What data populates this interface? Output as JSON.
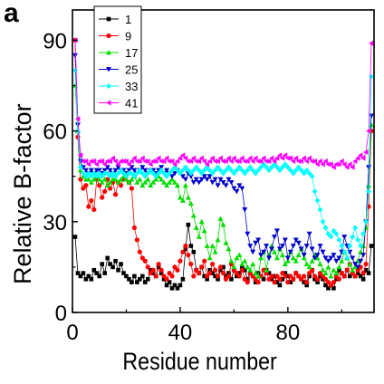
{
  "panel_label": "a",
  "chart_data": {
    "type": "line",
    "title": "",
    "xlabel": "Residue number",
    "ylabel": "Relative B-factor",
    "xlim": [
      0,
      112
    ],
    "ylim": [
      0,
      100
    ],
    "xticks": [
      0,
      40,
      80
    ],
    "yticks": [
      0,
      30,
      60,
      90
    ],
    "legend_position": "top-left",
    "grid": false,
    "series": [
      {
        "name": "1",
        "color": "#000000",
        "marker": "square",
        "x": [
          1,
          2,
          3,
          4,
          5,
          6,
          7,
          8,
          9,
          10,
          11,
          12,
          13,
          14,
          15,
          16,
          17,
          18,
          19,
          20,
          21,
          22,
          23,
          24,
          25,
          26,
          27,
          28,
          29,
          30,
          31,
          32,
          33,
          34,
          35,
          36,
          37,
          38,
          39,
          40,
          41,
          42,
          43,
          44,
          45,
          46,
          47,
          48,
          49,
          50,
          51,
          52,
          53,
          54,
          55,
          56,
          57,
          58,
          59,
          60,
          61,
          62,
          63,
          64,
          65,
          66,
          67,
          68,
          69,
          70,
          71,
          72,
          73,
          74,
          75,
          76,
          77,
          78,
          79,
          80,
          81,
          82,
          83,
          84,
          85,
          86,
          87,
          88,
          89,
          90,
          91,
          92,
          93,
          94,
          95,
          96,
          97,
          98,
          99,
          100,
          101,
          102,
          103,
          104,
          105,
          106,
          107,
          108,
          109,
          110,
          111
        ],
        "y": [
          25,
          13,
          12,
          13,
          11,
          12,
          11,
          14,
          13,
          12,
          16,
          13,
          18,
          16,
          15,
          17,
          14,
          16,
          13,
          12,
          11,
          10,
          12,
          10,
          11,
          12,
          10,
          11,
          14,
          13,
          12,
          15,
          13,
          11,
          9,
          10,
          8,
          9,
          8,
          9,
          11,
          21,
          29,
          22,
          20,
          14,
          13,
          15,
          12,
          11,
          14,
          13,
          12,
          11,
          14,
          15,
          12,
          13,
          11,
          14,
          12,
          13,
          15,
          14,
          11,
          13,
          12,
          10,
          13,
          12,
          11,
          14,
          13,
          11,
          12,
          10,
          9,
          11,
          13,
          12,
          10,
          11,
          13,
          12,
          11,
          10,
          9,
          12,
          14,
          11,
          10,
          12,
          11,
          9,
          8,
          9,
          8,
          11,
          14,
          13,
          12,
          14,
          12,
          13,
          12,
          13,
          12,
          11,
          14,
          13,
          22
        ]
      },
      {
        "name": "9",
        "color": "#ff0000",
        "marker": "circle",
        "x": [
          1,
          2,
          3,
          4,
          5,
          6,
          7,
          8,
          9,
          10,
          11,
          12,
          13,
          14,
          15,
          16,
          17,
          18,
          19,
          20,
          21,
          22,
          23,
          24,
          25,
          26,
          27,
          28,
          29,
          30,
          31,
          32,
          33,
          34,
          35,
          36,
          37,
          38,
          39,
          40,
          41,
          42,
          43,
          44,
          45,
          46,
          47,
          48,
          49,
          50,
          51,
          52,
          53,
          54,
          55,
          56,
          57,
          58,
          59,
          60,
          61,
          62,
          63,
          64,
          65,
          66,
          67,
          68,
          69,
          70,
          71,
          72,
          73,
          74,
          75,
          76,
          77,
          78,
          79,
          80,
          81,
          82,
          83,
          84,
          85,
          86,
          87,
          88,
          89,
          90,
          91,
          92,
          93,
          94,
          95,
          96,
          97,
          98,
          99,
          100,
          101,
          102,
          103,
          104,
          105,
          106,
          107,
          108,
          109,
          110,
          111
        ],
        "y": [
          90,
          58,
          44,
          41,
          42,
          35,
          37,
          34,
          44,
          42,
          38,
          40,
          44,
          41,
          43,
          39,
          43,
          42,
          44,
          45,
          43,
          41,
          28,
          24,
          20,
          18,
          17,
          15,
          13,
          14,
          12,
          16,
          14,
          12,
          11,
          13,
          12,
          15,
          14,
          17,
          20,
          22,
          19,
          16,
          12,
          14,
          13,
          15,
          17,
          12,
          13,
          16,
          14,
          12,
          15,
          13,
          11,
          12,
          16,
          14,
          13,
          12,
          14,
          11,
          10,
          13,
          12,
          11,
          10,
          12,
          14,
          13,
          11,
          12,
          10,
          12,
          11,
          13,
          12,
          10,
          12,
          11,
          13,
          12,
          11,
          12,
          10,
          13,
          14,
          12,
          11,
          13,
          12,
          11,
          10,
          9,
          10,
          12,
          11,
          13,
          12,
          14,
          16,
          13,
          12,
          14,
          15,
          13,
          16,
          35,
          60
        ]
      },
      {
        "name": "17",
        "color": "#00dd00",
        "marker": "triangle-up",
        "x": [
          1,
          2,
          3,
          4,
          5,
          6,
          7,
          8,
          9,
          10,
          11,
          12,
          13,
          14,
          15,
          16,
          17,
          18,
          19,
          20,
          21,
          22,
          23,
          24,
          25,
          26,
          27,
          28,
          29,
          30,
          31,
          32,
          33,
          34,
          35,
          36,
          37,
          38,
          39,
          40,
          41,
          42,
          43,
          44,
          45,
          46,
          47,
          48,
          49,
          50,
          51,
          52,
          53,
          54,
          55,
          56,
          57,
          58,
          59,
          60,
          61,
          62,
          63,
          64,
          65,
          66,
          67,
          68,
          69,
          70,
          71,
          72,
          73,
          74,
          75,
          76,
          77,
          78,
          79,
          80,
          81,
          82,
          83,
          84,
          85,
          86,
          87,
          88,
          89,
          90,
          91,
          92,
          93,
          94,
          95,
          96,
          97,
          98,
          99,
          100,
          101,
          102,
          103,
          104,
          105,
          106,
          107,
          108,
          109,
          110,
          111
        ],
        "y": [
          75,
          60,
          47,
          45,
          44,
          44,
          43,
          44,
          45,
          44,
          43,
          44,
          42,
          43,
          44,
          44,
          43,
          44,
          45,
          44,
          43,
          44,
          45,
          43,
          44,
          42,
          43,
          44,
          42,
          43,
          44,
          45,
          44,
          43,
          42,
          43,
          44,
          43,
          42,
          38,
          37,
          42,
          38,
          36,
          32,
          28,
          25,
          30,
          27,
          22,
          18,
          22,
          20,
          24,
          31,
          29,
          23,
          21,
          17,
          15,
          18,
          19,
          16,
          17,
          15,
          14,
          16,
          13,
          12,
          18,
          20,
          14,
          19,
          22,
          20,
          18,
          21,
          19,
          16,
          17,
          20,
          18,
          17,
          19,
          21,
          18,
          16,
          15,
          17,
          19,
          18,
          16,
          14,
          13,
          15,
          12,
          14,
          13,
          15,
          17,
          20,
          18,
          16,
          14,
          15,
          17,
          20,
          22,
          28,
          42,
          62
        ]
      },
      {
        "name": "25",
        "color": "#0000cc",
        "marker": "triangle-down",
        "x": [
          1,
          2,
          3,
          4,
          5,
          6,
          7,
          8,
          9,
          10,
          11,
          12,
          13,
          14,
          15,
          16,
          17,
          18,
          19,
          20,
          21,
          22,
          23,
          24,
          25,
          26,
          27,
          28,
          29,
          30,
          31,
          32,
          33,
          34,
          35,
          36,
          37,
          38,
          39,
          40,
          41,
          42,
          43,
          44,
          45,
          46,
          47,
          48,
          49,
          50,
          51,
          52,
          53,
          54,
          55,
          56,
          57,
          58,
          59,
          60,
          61,
          62,
          63,
          64,
          65,
          66,
          67,
          68,
          69,
          70,
          71,
          72,
          73,
          74,
          75,
          76,
          77,
          78,
          79,
          80,
          81,
          82,
          83,
          84,
          85,
          86,
          87,
          88,
          89,
          90,
          91,
          92,
          93,
          94,
          95,
          96,
          97,
          98,
          99,
          100,
          101,
          102,
          103,
          104,
          105,
          106,
          107,
          108,
          109,
          110,
          111
        ],
        "y": [
          85,
          62,
          50,
          48,
          47,
          46,
          47,
          46,
          47,
          47,
          46,
          47,
          48,
          47,
          46,
          47,
          48,
          47,
          47,
          46,
          47,
          48,
          47,
          46,
          47,
          48,
          47,
          46,
          47,
          47,
          46,
          47,
          48,
          46,
          47,
          46,
          45,
          46,
          47,
          46,
          45,
          44,
          46,
          45,
          43,
          44,
          43,
          44,
          45,
          44,
          45,
          43,
          44,
          42,
          44,
          43,
          42,
          44,
          43,
          41,
          40,
          42,
          41,
          34,
          26,
          22,
          20,
          23,
          24,
          19,
          20,
          22,
          18,
          21,
          25,
          27,
          21,
          22,
          24,
          18,
          20,
          22,
          24,
          23,
          21,
          19,
          22,
          26,
          21,
          18,
          19,
          22,
          20,
          18,
          17,
          18,
          19,
          17,
          18,
          20,
          25,
          22,
          20,
          18,
          16,
          15,
          17,
          19,
          30,
          48,
          65
        ]
      },
      {
        "name": "33",
        "color": "#00ffff",
        "marker": "diamond",
        "x": [
          1,
          2,
          3,
          4,
          5,
          6,
          7,
          8,
          9,
          10,
          11,
          12,
          13,
          14,
          15,
          16,
          17,
          18,
          19,
          20,
          21,
          22,
          23,
          24,
          25,
          26,
          27,
          28,
          29,
          30,
          31,
          32,
          33,
          34,
          35,
          36,
          37,
          38,
          39,
          40,
          41,
          42,
          43,
          44,
          45,
          46,
          47,
          48,
          49,
          50,
          51,
          52,
          53,
          54,
          55,
          56,
          57,
          58,
          59,
          60,
          61,
          62,
          63,
          64,
          65,
          66,
          67,
          68,
          69,
          70,
          71,
          72,
          73,
          74,
          75,
          76,
          77,
          78,
          79,
          80,
          81,
          82,
          83,
          84,
          85,
          86,
          87,
          88,
          89,
          90,
          91,
          92,
          93,
          94,
          95,
          96,
          97,
          98,
          99,
          100,
          101,
          102,
          103,
          104,
          105,
          106,
          107,
          108,
          109,
          110,
          111
        ],
        "y": [
          80,
          60,
          48,
          46,
          45,
          46,
          45,
          46,
          45,
          46,
          45,
          46,
          46,
          45,
          46,
          45,
          46,
          47,
          46,
          45,
          46,
          46,
          45,
          46,
          47,
          46,
          45,
          46,
          47,
          46,
          45,
          46,
          47,
          46,
          45,
          46,
          47,
          48,
          47,
          46,
          47,
          48,
          47,
          46,
          47,
          48,
          47,
          46,
          47,
          48,
          47,
          46,
          47,
          48,
          47,
          46,
          47,
          48,
          47,
          46,
          47,
          48,
          47,
          46,
          47,
          48,
          47,
          46,
          47,
          48,
          49,
          48,
          47,
          48,
          49,
          48,
          47,
          48,
          49,
          48,
          47,
          46,
          47,
          48,
          47,
          46,
          47,
          46,
          45,
          40,
          37,
          34,
          30,
          28,
          26,
          25,
          27,
          26,
          24,
          22,
          20,
          18,
          22,
          25,
          28,
          24,
          22,
          26,
          30,
          40,
          78
        ]
      },
      {
        "name": "41",
        "color": "#ff00ff",
        "marker": "triangle-left",
        "x": [
          1,
          2,
          3,
          4,
          5,
          6,
          7,
          8,
          9,
          10,
          11,
          12,
          13,
          14,
          15,
          16,
          17,
          18,
          19,
          20,
          21,
          22,
          23,
          24,
          25,
          26,
          27,
          28,
          29,
          30,
          31,
          32,
          33,
          34,
          35,
          36,
          37,
          38,
          39,
          40,
          41,
          42,
          43,
          44,
          45,
          46,
          47,
          48,
          49,
          50,
          51,
          52,
          53,
          54,
          55,
          56,
          57,
          58,
          59,
          60,
          61,
          62,
          63,
          64,
          65,
          66,
          67,
          68,
          69,
          70,
          71,
          72,
          73,
          74,
          75,
          76,
          77,
          78,
          79,
          80,
          81,
          82,
          83,
          84,
          85,
          86,
          87,
          88,
          89,
          90,
          91,
          92,
          93,
          94,
          95,
          96,
          97,
          98,
          99,
          100,
          101,
          102,
          103,
          104,
          105,
          106,
          107,
          108,
          109,
          110,
          111
        ],
        "y": [
          90,
          64,
          52,
          50,
          50,
          49,
          50,
          50,
          49,
          50,
          50,
          49,
          50,
          50,
          51,
          50,
          49,
          50,
          50,
          50,
          49,
          50,
          51,
          50,
          50,
          51,
          50,
          50,
          49,
          50,
          50,
          51,
          50,
          50,
          51,
          50,
          50,
          49,
          50,
          51,
          52,
          51,
          50,
          50,
          51,
          50,
          50,
          51,
          50,
          49,
          50,
          51,
          50,
          50,
          51,
          50,
          50,
          51,
          50,
          51,
          50,
          50,
          51,
          50,
          50,
          51,
          50,
          51,
          50,
          50,
          51,
          50,
          50,
          51,
          50,
          51,
          52,
          51,
          52,
          51,
          51,
          50,
          51,
          50,
          50,
          51,
          50,
          51,
          50,
          50,
          49,
          50,
          49,
          50,
          49,
          49,
          48,
          49,
          49,
          50,
          49,
          48,
          49,
          48,
          50,
          51,
          52,
          51,
          53,
          60,
          89
        ]
      }
    ]
  }
}
